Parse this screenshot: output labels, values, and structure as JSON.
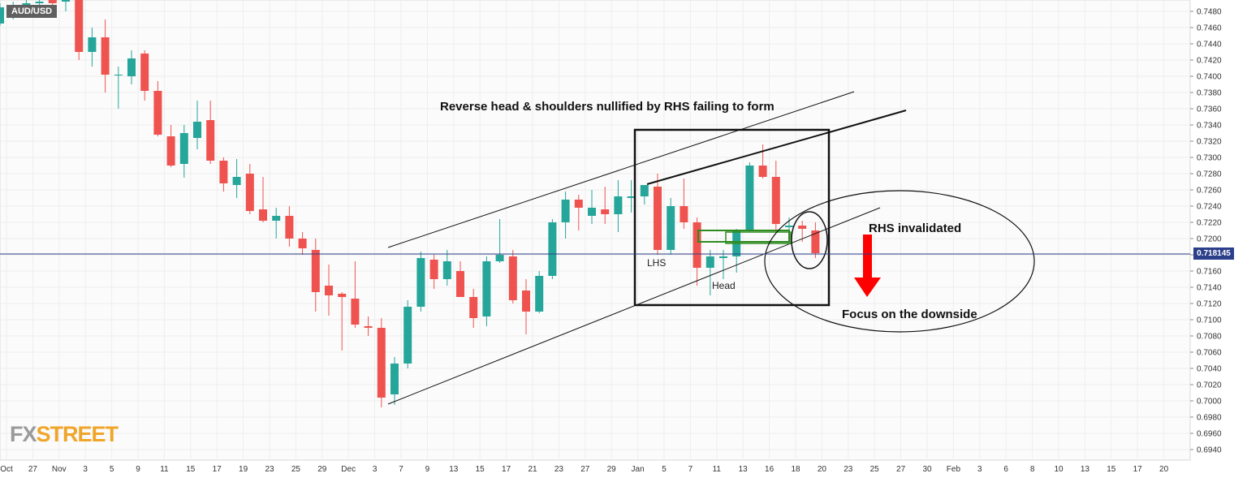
{
  "symbol": "AUD/USD",
  "logo": {
    "fx": "FX",
    "street": "STREET"
  },
  "current_price": "0.718145",
  "annotations": {
    "title": "Reverse head & shoulders nullified by RHS failing to form",
    "rhs_invalidated": "RHS invalidated",
    "focus": "Focus on the downside",
    "lhs": "LHS",
    "head": "Head"
  },
  "colors": {
    "up": "#26a69a",
    "down": "#ef5350",
    "price_line": "#2b3f8a",
    "arrow": "#ff0000",
    "box": "#2e8b20"
  },
  "chart_data": {
    "type": "candlestick",
    "ylim": [
      0.693,
      0.749
    ],
    "y_ticks": [
      "0.7480",
      "0.7460",
      "0.7440",
      "0.7420",
      "0.7400",
      "0.7380",
      "0.7360",
      "0.7340",
      "0.7320",
      "0.7300",
      "0.7280",
      "0.7260",
      "0.7240",
      "0.7220",
      "0.7200",
      "0.7180",
      "0.7160",
      "0.7140",
      "0.7120",
      "0.7100",
      "0.7080",
      "0.7060",
      "0.7040",
      "0.7020",
      "0.7000",
      "0.6980",
      "0.6960",
      "0.6940"
    ],
    "x_ticks": [
      "Oct",
      "27",
      "Nov",
      "3",
      "5",
      "9",
      "11",
      "15",
      "17",
      "19",
      "23",
      "25",
      "29",
      "Dec",
      "3",
      "7",
      "9",
      "13",
      "15",
      "17",
      "21",
      "23",
      "27",
      "29",
      "Jan",
      "5",
      "7",
      "11",
      "13",
      "16",
      "18",
      "20",
      "23",
      "25",
      "27",
      "30",
      "Feb",
      "3",
      "6",
      "8",
      "10",
      "13",
      "15",
      "17",
      "20"
    ],
    "candles": [
      {
        "o": 0.7465,
        "h": 0.749,
        "l": 0.7462,
        "c": 0.7485
      },
      {
        "o": 0.748,
        "h": 0.7492,
        "l": 0.747,
        "c": 0.7486
      },
      {
        "o": 0.7486,
        "h": 0.7495,
        "l": 0.7478,
        "c": 0.749
      },
      {
        "o": 0.749,
        "h": 0.7498,
        "l": 0.7484,
        "c": 0.7492
      },
      {
        "o": 0.7494,
        "h": 0.75,
        "l": 0.7482,
        "c": 0.749
      },
      {
        "o": 0.7492,
        "h": 0.75,
        "l": 0.748,
        "c": 0.7496
      },
      {
        "o": 0.7496,
        "h": 0.75,
        "l": 0.742,
        "c": 0.743
      },
      {
        "o": 0.743,
        "h": 0.746,
        "l": 0.7412,
        "c": 0.7448
      },
      {
        "o": 0.7448,
        "h": 0.747,
        "l": 0.738,
        "c": 0.7402
      },
      {
        "o": 0.7402,
        "h": 0.7412,
        "l": 0.736,
        "c": 0.7402
      },
      {
        "o": 0.74,
        "h": 0.7432,
        "l": 0.739,
        "c": 0.7422
      },
      {
        "o": 0.7428,
        "h": 0.7432,
        "l": 0.737,
        "c": 0.7382
      },
      {
        "o": 0.7382,
        "h": 0.7394,
        "l": 0.7326,
        "c": 0.7328
      },
      {
        "o": 0.7326,
        "h": 0.734,
        "l": 0.7288,
        "c": 0.729
      },
      {
        "o": 0.7292,
        "h": 0.734,
        "l": 0.7275,
        "c": 0.733
      },
      {
        "o": 0.7324,
        "h": 0.737,
        "l": 0.731,
        "c": 0.7344
      },
      {
        "o": 0.7346,
        "h": 0.737,
        "l": 0.7292,
        "c": 0.7296
      },
      {
        "o": 0.7296,
        "h": 0.73,
        "l": 0.7258,
        "c": 0.7268
      },
      {
        "o": 0.7266,
        "h": 0.7298,
        "l": 0.725,
        "c": 0.7276
      },
      {
        "o": 0.728,
        "h": 0.7292,
        "l": 0.723,
        "c": 0.7234
      },
      {
        "o": 0.7236,
        "h": 0.7276,
        "l": 0.722,
        "c": 0.7222
      },
      {
        "o": 0.7222,
        "h": 0.7238,
        "l": 0.72,
        "c": 0.7228
      },
      {
        "o": 0.7228,
        "h": 0.724,
        "l": 0.719,
        "c": 0.72
      },
      {
        "o": 0.72,
        "h": 0.7208,
        "l": 0.718,
        "c": 0.7188
      },
      {
        "o": 0.7186,
        "h": 0.72,
        "l": 0.711,
        "c": 0.7134
      },
      {
        "o": 0.7142,
        "h": 0.7168,
        "l": 0.7105,
        "c": 0.713
      },
      {
        "o": 0.7132,
        "h": 0.7134,
        "l": 0.7062,
        "c": 0.7128
      },
      {
        "o": 0.7126,
        "h": 0.7172,
        "l": 0.709,
        "c": 0.7094
      },
      {
        "o": 0.7092,
        "h": 0.7104,
        "l": 0.708,
        "c": 0.709
      },
      {
        "o": 0.709,
        "h": 0.7102,
        "l": 0.6992,
        "c": 0.7004
      },
      {
        "o": 0.7008,
        "h": 0.7054,
        "l": 0.6995,
        "c": 0.7046
      },
      {
        "o": 0.7046,
        "h": 0.7124,
        "l": 0.704,
        "c": 0.7116
      },
      {
        "o": 0.7116,
        "h": 0.7184,
        "l": 0.711,
        "c": 0.7176
      },
      {
        "o": 0.7174,
        "h": 0.718,
        "l": 0.7138,
        "c": 0.715
      },
      {
        "o": 0.715,
        "h": 0.7186,
        "l": 0.7142,
        "c": 0.7172
      },
      {
        "o": 0.716,
        "h": 0.7172,
        "l": 0.7128,
        "c": 0.7128
      },
      {
        "o": 0.7128,
        "h": 0.7138,
        "l": 0.709,
        "c": 0.7102
      },
      {
        "o": 0.7104,
        "h": 0.7178,
        "l": 0.7092,
        "c": 0.7172
      },
      {
        "o": 0.7172,
        "h": 0.7224,
        "l": 0.717,
        "c": 0.718
      },
      {
        "o": 0.7178,
        "h": 0.7186,
        "l": 0.712,
        "c": 0.7124
      },
      {
        "o": 0.7136,
        "h": 0.715,
        "l": 0.7082,
        "c": 0.711
      },
      {
        "o": 0.711,
        "h": 0.716,
        "l": 0.7108,
        "c": 0.7154
      },
      {
        "o": 0.7154,
        "h": 0.7224,
        "l": 0.715,
        "c": 0.722
      },
      {
        "o": 0.722,
        "h": 0.7258,
        "l": 0.72,
        "c": 0.7248
      },
      {
        "o": 0.7248,
        "h": 0.7254,
        "l": 0.721,
        "c": 0.7238
      },
      {
        "o": 0.7228,
        "h": 0.726,
        "l": 0.7218,
        "c": 0.7238
      },
      {
        "o": 0.7236,
        "h": 0.7264,
        "l": 0.7218,
        "c": 0.723
      },
      {
        "o": 0.723,
        "h": 0.7272,
        "l": 0.7208,
        "c": 0.7252
      },
      {
        "o": 0.725,
        "h": 0.7272,
        "l": 0.7232,
        "c": 0.7252
      },
      {
        "o": 0.7252,
        "h": 0.7266,
        "l": 0.7242,
        "c": 0.7266
      },
      {
        "o": 0.7264,
        "h": 0.728,
        "l": 0.718,
        "c": 0.7186
      },
      {
        "o": 0.7186,
        "h": 0.725,
        "l": 0.718,
        "c": 0.724
      },
      {
        "o": 0.724,
        "h": 0.7274,
        "l": 0.7212,
        "c": 0.722
      },
      {
        "o": 0.722,
        "h": 0.7226,
        "l": 0.7142,
        "c": 0.7164
      },
      {
        "o": 0.7164,
        "h": 0.7186,
        "l": 0.713,
        "c": 0.7178
      },
      {
        "o": 0.7176,
        "h": 0.7186,
        "l": 0.715,
        "c": 0.7178
      },
      {
        "o": 0.7178,
        "h": 0.7212,
        "l": 0.7158,
        "c": 0.721
      },
      {
        "o": 0.721,
        "h": 0.7294,
        "l": 0.7208,
        "c": 0.729
      },
      {
        "o": 0.729,
        "h": 0.7316,
        "l": 0.7274,
        "c": 0.7276
      },
      {
        "o": 0.7276,
        "h": 0.7296,
        "l": 0.7208,
        "c": 0.7218
      },
      {
        "o": 0.7214,
        "h": 0.7226,
        "l": 0.7206,
        "c": 0.7216
      },
      {
        "o": 0.7216,
        "h": 0.7222,
        "l": 0.7196,
        "c": 0.7212
      },
      {
        "o": 0.721,
        "h": 0.722,
        "l": 0.7176,
        "c": 0.7182
      }
    ]
  }
}
